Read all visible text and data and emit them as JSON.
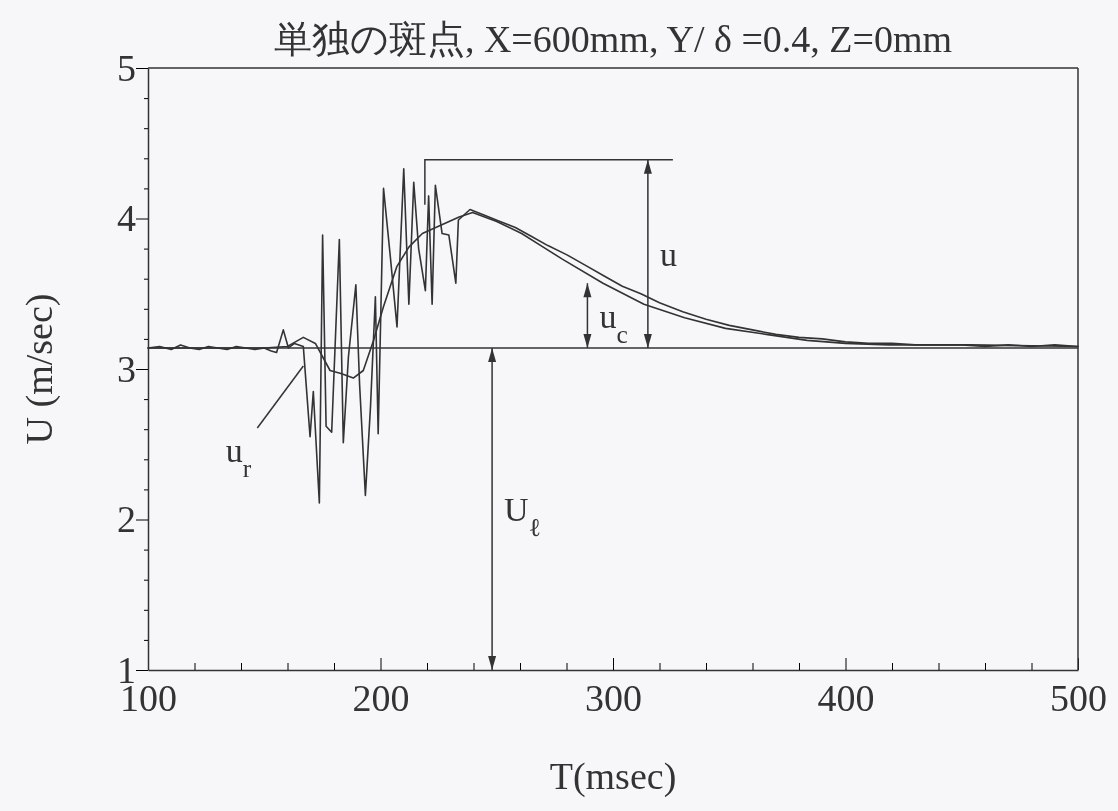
{
  "chart_data": {
    "type": "line",
    "title": "単独の斑点, X=600mm, Y/ δ =0.4, Z=0mm",
    "xlabel": "T(msec)",
    "ylabel": "U (m/sec)",
    "xlim": [
      100,
      500
    ],
    "ylim": [
      1,
      5
    ],
    "xticks": [
      100,
      {
        "value": 120,
        "label": null
      },
      {
        "value": 140,
        "label": null
      },
      {
        "value": 160,
        "label": null
      },
      {
        "value": 180,
        "label": null
      },
      200,
      {
        "value": 220,
        "label": null
      },
      {
        "value": 240,
        "label": null
      },
      {
        "value": 260,
        "label": null
      },
      {
        "value": 280,
        "label": null
      },
      300,
      {
        "value": 320,
        "label": null
      },
      {
        "value": 340,
        "label": null
      },
      {
        "value": 360,
        "label": null
      },
      {
        "value": 380,
        "label": null
      },
      400,
      {
        "value": 420,
        "label": null
      },
      {
        "value": 440,
        "label": null
      },
      {
        "value": 460,
        "label": null
      },
      {
        "value": 480,
        "label": null
      },
      500
    ],
    "yticks": [
      1,
      {
        "value": 1.2,
        "label": null
      },
      {
        "value": 1.4,
        "label": null
      },
      {
        "value": 1.6,
        "label": null
      },
      {
        "value": 1.8,
        "label": null
      },
      2,
      {
        "value": 2.2,
        "label": null
      },
      {
        "value": 2.4,
        "label": null
      },
      {
        "value": 2.6,
        "label": null
      },
      {
        "value": 2.8,
        "label": null
      },
      3,
      {
        "value": 3.2,
        "label": null
      },
      {
        "value": 3.4,
        "label": null
      },
      {
        "value": 3.6,
        "label": null
      },
      {
        "value": 3.8,
        "label": null
      },
      4,
      {
        "value": 4.2,
        "label": null
      },
      {
        "value": 4.4,
        "label": null
      },
      {
        "value": 4.6,
        "label": null
      },
      {
        "value": 4.8,
        "label": null
      },
      5
    ],
    "grid": false,
    "marker": "none",
    "line_style": "solid",
    "series": [
      {
        "color": "#333333",
        "x": [
          100,
          105,
          110,
          114,
          118,
          122,
          126,
          130,
          134,
          138,
          142,
          146,
          150,
          153,
          155.3,
          158.2,
          160.4,
          163,
          166.8,
          169.7,
          171.1,
          173.7,
          175.1,
          176.6,
          179,
          182.3,
          184,
          186.2,
          189.4,
          191,
          193.5,
          195.7,
          197.8,
          199,
          201.3,
          204.2,
          207.1,
          210,
          212.2,
          214.3,
          216.4,
          219.3,
          220.7,
          222.2,
          223.6,
          226.5,
          229.4,
          232.4,
          233.5,
          238.5,
          245,
          251.4,
          258,
          265,
          272,
          280,
          288,
          296,
          304,
          312,
          320,
          330,
          340,
          350,
          360,
          370,
          380,
          390,
          400,
          410,
          420,
          430,
          440,
          450,
          460,
          470,
          480,
          490,
          500
        ],
        "values": [
          3.14,
          3.15,
          3.13,
          3.16,
          3.14,
          3.13,
          3.15,
          3.14,
          3.13,
          3.15,
          3.14,
          3.13,
          3.14,
          3.12,
          3.11,
          3.26,
          3.14,
          3.17,
          3.15,
          2.55,
          2.85,
          2.11,
          3.89,
          2.62,
          2.58,
          3.86,
          2.51,
          3.08,
          3.56,
          2.9,
          2.16,
          2.75,
          3.48,
          2.57,
          4.2,
          3.75,
          3.28,
          4.33,
          3.43,
          4.24,
          3.8,
          3.52,
          4.15,
          3.43,
          4.22,
          3.9,
          3.89,
          3.57,
          3.99,
          4.06,
          4.02,
          3.98,
          3.94,
          3.88,
          3.82,
          3.76,
          3.69,
          3.62,
          3.55,
          3.5,
          3.44,
          3.38,
          3.33,
          3.29,
          3.26,
          3.23,
          3.21,
          3.2,
          3.18,
          3.17,
          3.17,
          3.16,
          3.16,
          3.16,
          3.15,
          3.16,
          3.15,
          3.16,
          3.15
        ]
      },
      {
        "color": "#333333",
        "x": [
          100,
          150,
          160,
          166.8,
          172,
          178.3,
          183,
          188.3,
          192.6,
          197,
          201.2,
          207,
          212.2,
          218,
          225.2,
          233.8,
          239.6,
          250,
          260.7,
          270,
          278.2,
          295.7,
          313.3,
          330.8,
          348.4,
          365.9,
          383.5,
          400,
          418.6,
          453.7,
          500
        ],
        "values": [
          3.14,
          3.14,
          3.15,
          3.21,
          3.17,
          2.99,
          2.97,
          2.94,
          2.99,
          3.19,
          3.41,
          3.68,
          3.81,
          3.9,
          3.95,
          4.01,
          4.04,
          3.98,
          3.9,
          3.81,
          3.73,
          3.57,
          3.43,
          3.34,
          3.27,
          3.23,
          3.19,
          3.17,
          3.16,
          3.16,
          3.15
        ]
      }
    ],
    "ref_lines": [
      {
        "axis": "y",
        "value": 3.14,
        "color": "#333333"
      }
    ],
    "annotations": [
      "u",
      "u$_{c}$",
      "U$_{ℓ}$",
      {
        "text": "u$_{r}$",
        "x": 166.8,
        "y": 3.02
      }
    ]
  }
}
